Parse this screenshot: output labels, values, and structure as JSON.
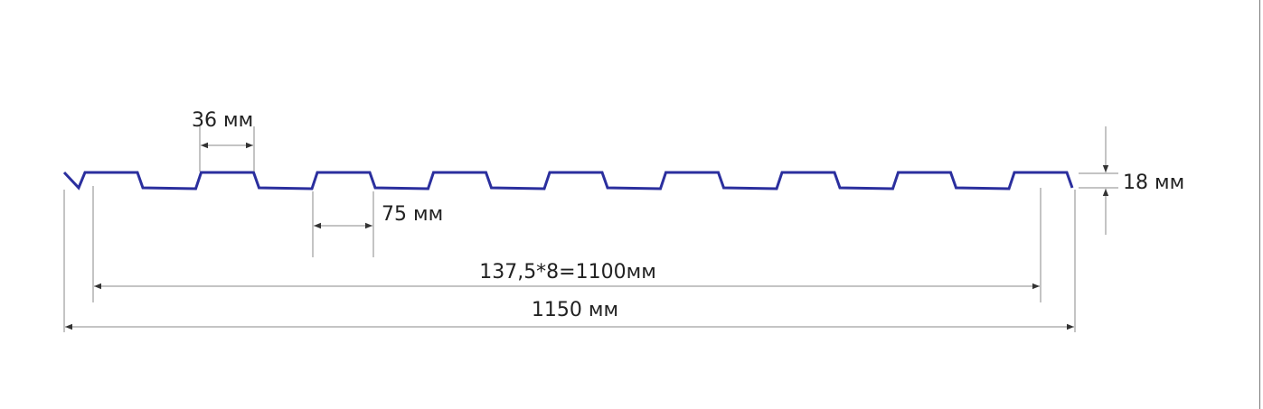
{
  "colors": {
    "profile": "#2b2f9e",
    "dimension": "#888888",
    "text": "#222222"
  },
  "labels": {
    "crest_width": "36 мм",
    "trough_width": "75 мм",
    "height": "18 мм",
    "useful_width": "137,5*8=1100мм",
    "total_width": "1150 мм"
  }
}
